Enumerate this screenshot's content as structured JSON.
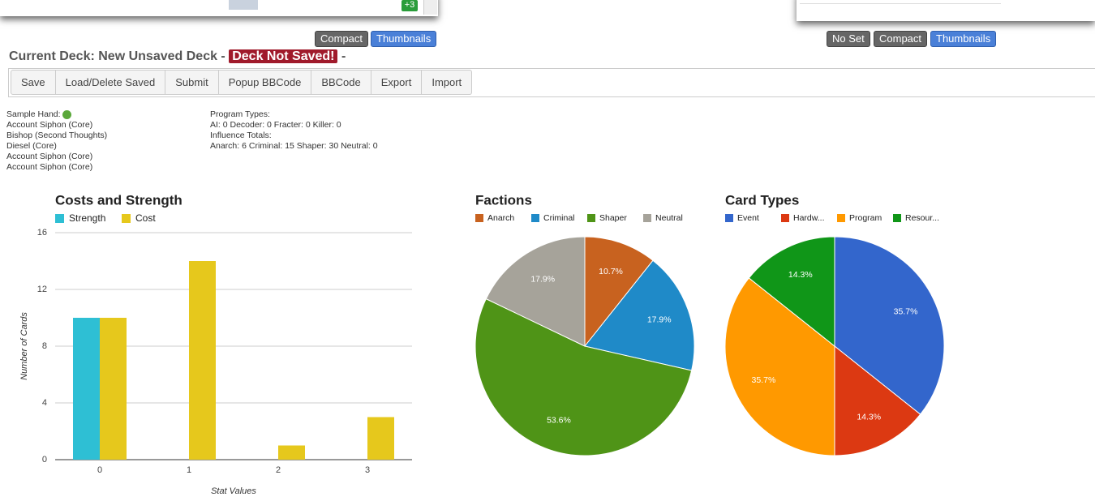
{
  "top_panel": {
    "badge": "+3"
  },
  "view_left": [
    "Compact",
    "Thumbnails"
  ],
  "view_right": [
    "No Set",
    "Compact",
    "Thumbnails"
  ],
  "deck": {
    "label": "Current Deck: New Unsaved Deck -",
    "status": "Deck Not Saved!",
    "suffix": "-"
  },
  "toolbar": [
    "Save",
    "Load/Delete Saved",
    "Submit",
    "Popup BBCode",
    "BBCode",
    "Export",
    "Import"
  ],
  "sample_hand": {
    "label": "Sample Hand:",
    "cards": [
      "Account Siphon (Core)",
      "Bishop (Second Thoughts)",
      "Diesel (Core)",
      "Account Siphon (Core)",
      "Account Siphon (Core)"
    ]
  },
  "stats": [
    "Program Types:",
    "AI: 0 Decoder: 0 Fracter: 0 Killer: 0",
    "Influence Totals:",
    "Anarch: 6 Criminal: 15 Shaper: 30 Neutral: 0"
  ],
  "chart_data": [
    {
      "type": "bar",
      "title": "Costs and Strength",
      "categories": [
        "0",
        "1",
        "2",
        "3"
      ],
      "series": [
        {
          "name": "Strength",
          "color": "#2ebfd4",
          "values": [
            10,
            0,
            0,
            0
          ]
        },
        {
          "name": "Cost",
          "color": "#e6c81c",
          "values": [
            10,
            14,
            1,
            3
          ]
        }
      ],
      "ylim": [
        0,
        16
      ],
      "yticks": [
        0,
        4,
        8,
        12,
        16
      ],
      "grid": true,
      "xlabel": "Stat Values",
      "ylabel": "Number of Cards",
      "legend": "top"
    },
    {
      "type": "pie",
      "title": "Factions",
      "categories": [
        "Anarch",
        "Criminal",
        "Shaper",
        "Neutral"
      ],
      "values": [
        10.7,
        17.9,
        53.6,
        17.9
      ],
      "value_labels": [
        "10.7%",
        "17.9%",
        "53.6%",
        "17.9%"
      ],
      "colors": [
        "#c8621f",
        "#1f8ac8",
        "#4f9417",
        "#a6a39a"
      ],
      "legend": "top"
    },
    {
      "type": "pie",
      "title": "Card Types",
      "categories": [
        "Event",
        "Hardw...",
        "Program",
        "Resour..."
      ],
      "values": [
        35.7,
        14.3,
        35.7,
        14.3
      ],
      "value_labels": [
        "35.7%",
        "14.3%",
        "35.7%",
        "14.3%"
      ],
      "colors": [
        "#3366cc",
        "#dc3912",
        "#ff9900",
        "#109618"
      ],
      "legend": "top"
    }
  ]
}
